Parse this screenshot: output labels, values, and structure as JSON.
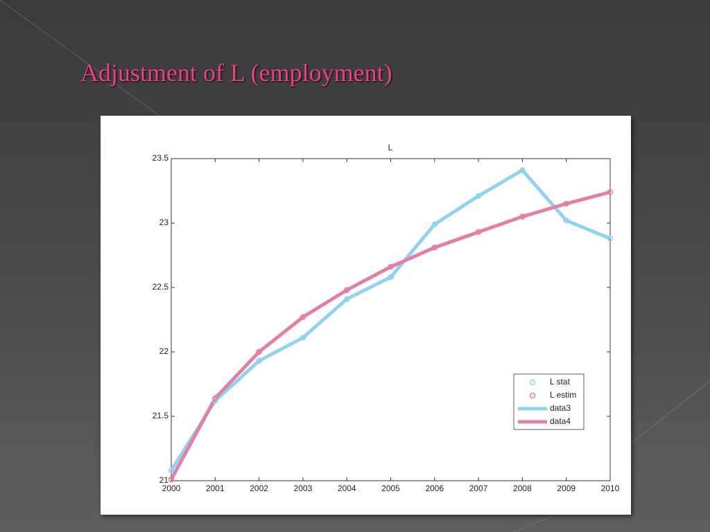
{
  "slide_title": "Adjustment of L (employment)",
  "chart_data": {
    "type": "line",
    "title": "L",
    "x": [
      2000,
      2001,
      2002,
      2003,
      2004,
      2005,
      2006,
      2007,
      2008,
      2009,
      2010
    ],
    "xlim": [
      2000,
      2010
    ],
    "xticks": [
      2000,
      2001,
      2002,
      2003,
      2004,
      2005,
      2006,
      2007,
      2008,
      2009,
      2010
    ],
    "ylim": [
      21,
      23.5
    ],
    "yticks": [
      21,
      21.5,
      22,
      22.5,
      23,
      23.5
    ],
    "series": [
      {
        "name": "L stat",
        "color": "#8fd3ef",
        "mode": "markers",
        "values": [
          21.08,
          21.62,
          21.93,
          22.11,
          22.41,
          22.58,
          22.99,
          23.21,
          23.41,
          23.02,
          22.88
        ]
      },
      {
        "name": "L estim",
        "color": "#e37fa6",
        "mode": "markers",
        "values": [
          21.01,
          21.64,
          22.0,
          22.27,
          22.48,
          22.66,
          22.81,
          22.93,
          23.05,
          23.15,
          23.24
        ]
      },
      {
        "name": "data3",
        "color": "#8fd3ef",
        "mode": "line",
        "values": [
          21.08,
          21.62,
          21.93,
          22.11,
          22.41,
          22.58,
          22.99,
          23.21,
          23.41,
          23.02,
          22.88
        ]
      },
      {
        "name": "data4",
        "color": "#e37fa6",
        "mode": "line",
        "values": [
          21.01,
          21.64,
          22.0,
          22.27,
          22.48,
          22.66,
          22.81,
          22.93,
          23.05,
          23.15,
          23.24
        ]
      }
    ],
    "legend": "lower right"
  }
}
